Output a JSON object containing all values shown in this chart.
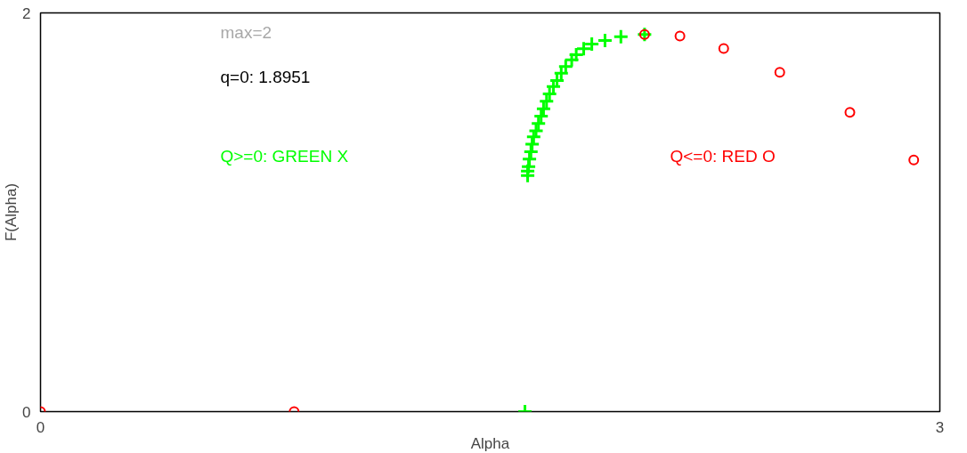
{
  "chart_data": {
    "type": "scatter",
    "xlabel": "Alpha",
    "ylabel": "F(Alpha)",
    "annotations": [
      "max=2",
      "q=0: 1.8951"
    ],
    "xlim": [
      0,
      3
    ],
    "ylim": [
      0,
      2
    ],
    "xticks": [
      0,
      3
    ],
    "yticks": [
      0,
      2
    ],
    "legend": false,
    "series": [
      {
        "name": "Q>=0: GREEN X",
        "color": "#00ff00",
        "marker": "cross",
        "x": [
          1.616,
          1.625,
          1.625,
          1.628,
          1.631,
          1.636,
          1.64,
          1.645,
          1.653,
          1.661,
          1.67,
          1.678,
          1.688,
          1.698,
          1.711,
          1.723,
          1.737,
          1.752,
          1.772,
          1.787,
          1.812,
          1.839,
          1.883,
          1.936,
          2.015
        ],
        "values": [
          0,
          1.184,
          1.207,
          1.229,
          1.267,
          1.304,
          1.341,
          1.378,
          1.408,
          1.445,
          1.482,
          1.519,
          1.557,
          1.594,
          1.631,
          1.661,
          1.698,
          1.731,
          1.765,
          1.79,
          1.82,
          1.844,
          1.862,
          1.881,
          1.892
        ]
      },
      {
        "name": "Q<=0: RED O",
        "color": "#ff0000",
        "marker": "circle",
        "x": [
          0,
          0.846,
          2.015,
          2.133,
          2.279,
          2.466,
          2.7,
          2.913
        ],
        "values": [
          0,
          0,
          1.892,
          1.884,
          1.821,
          1.702,
          1.501,
          1.262
        ]
      }
    ]
  }
}
